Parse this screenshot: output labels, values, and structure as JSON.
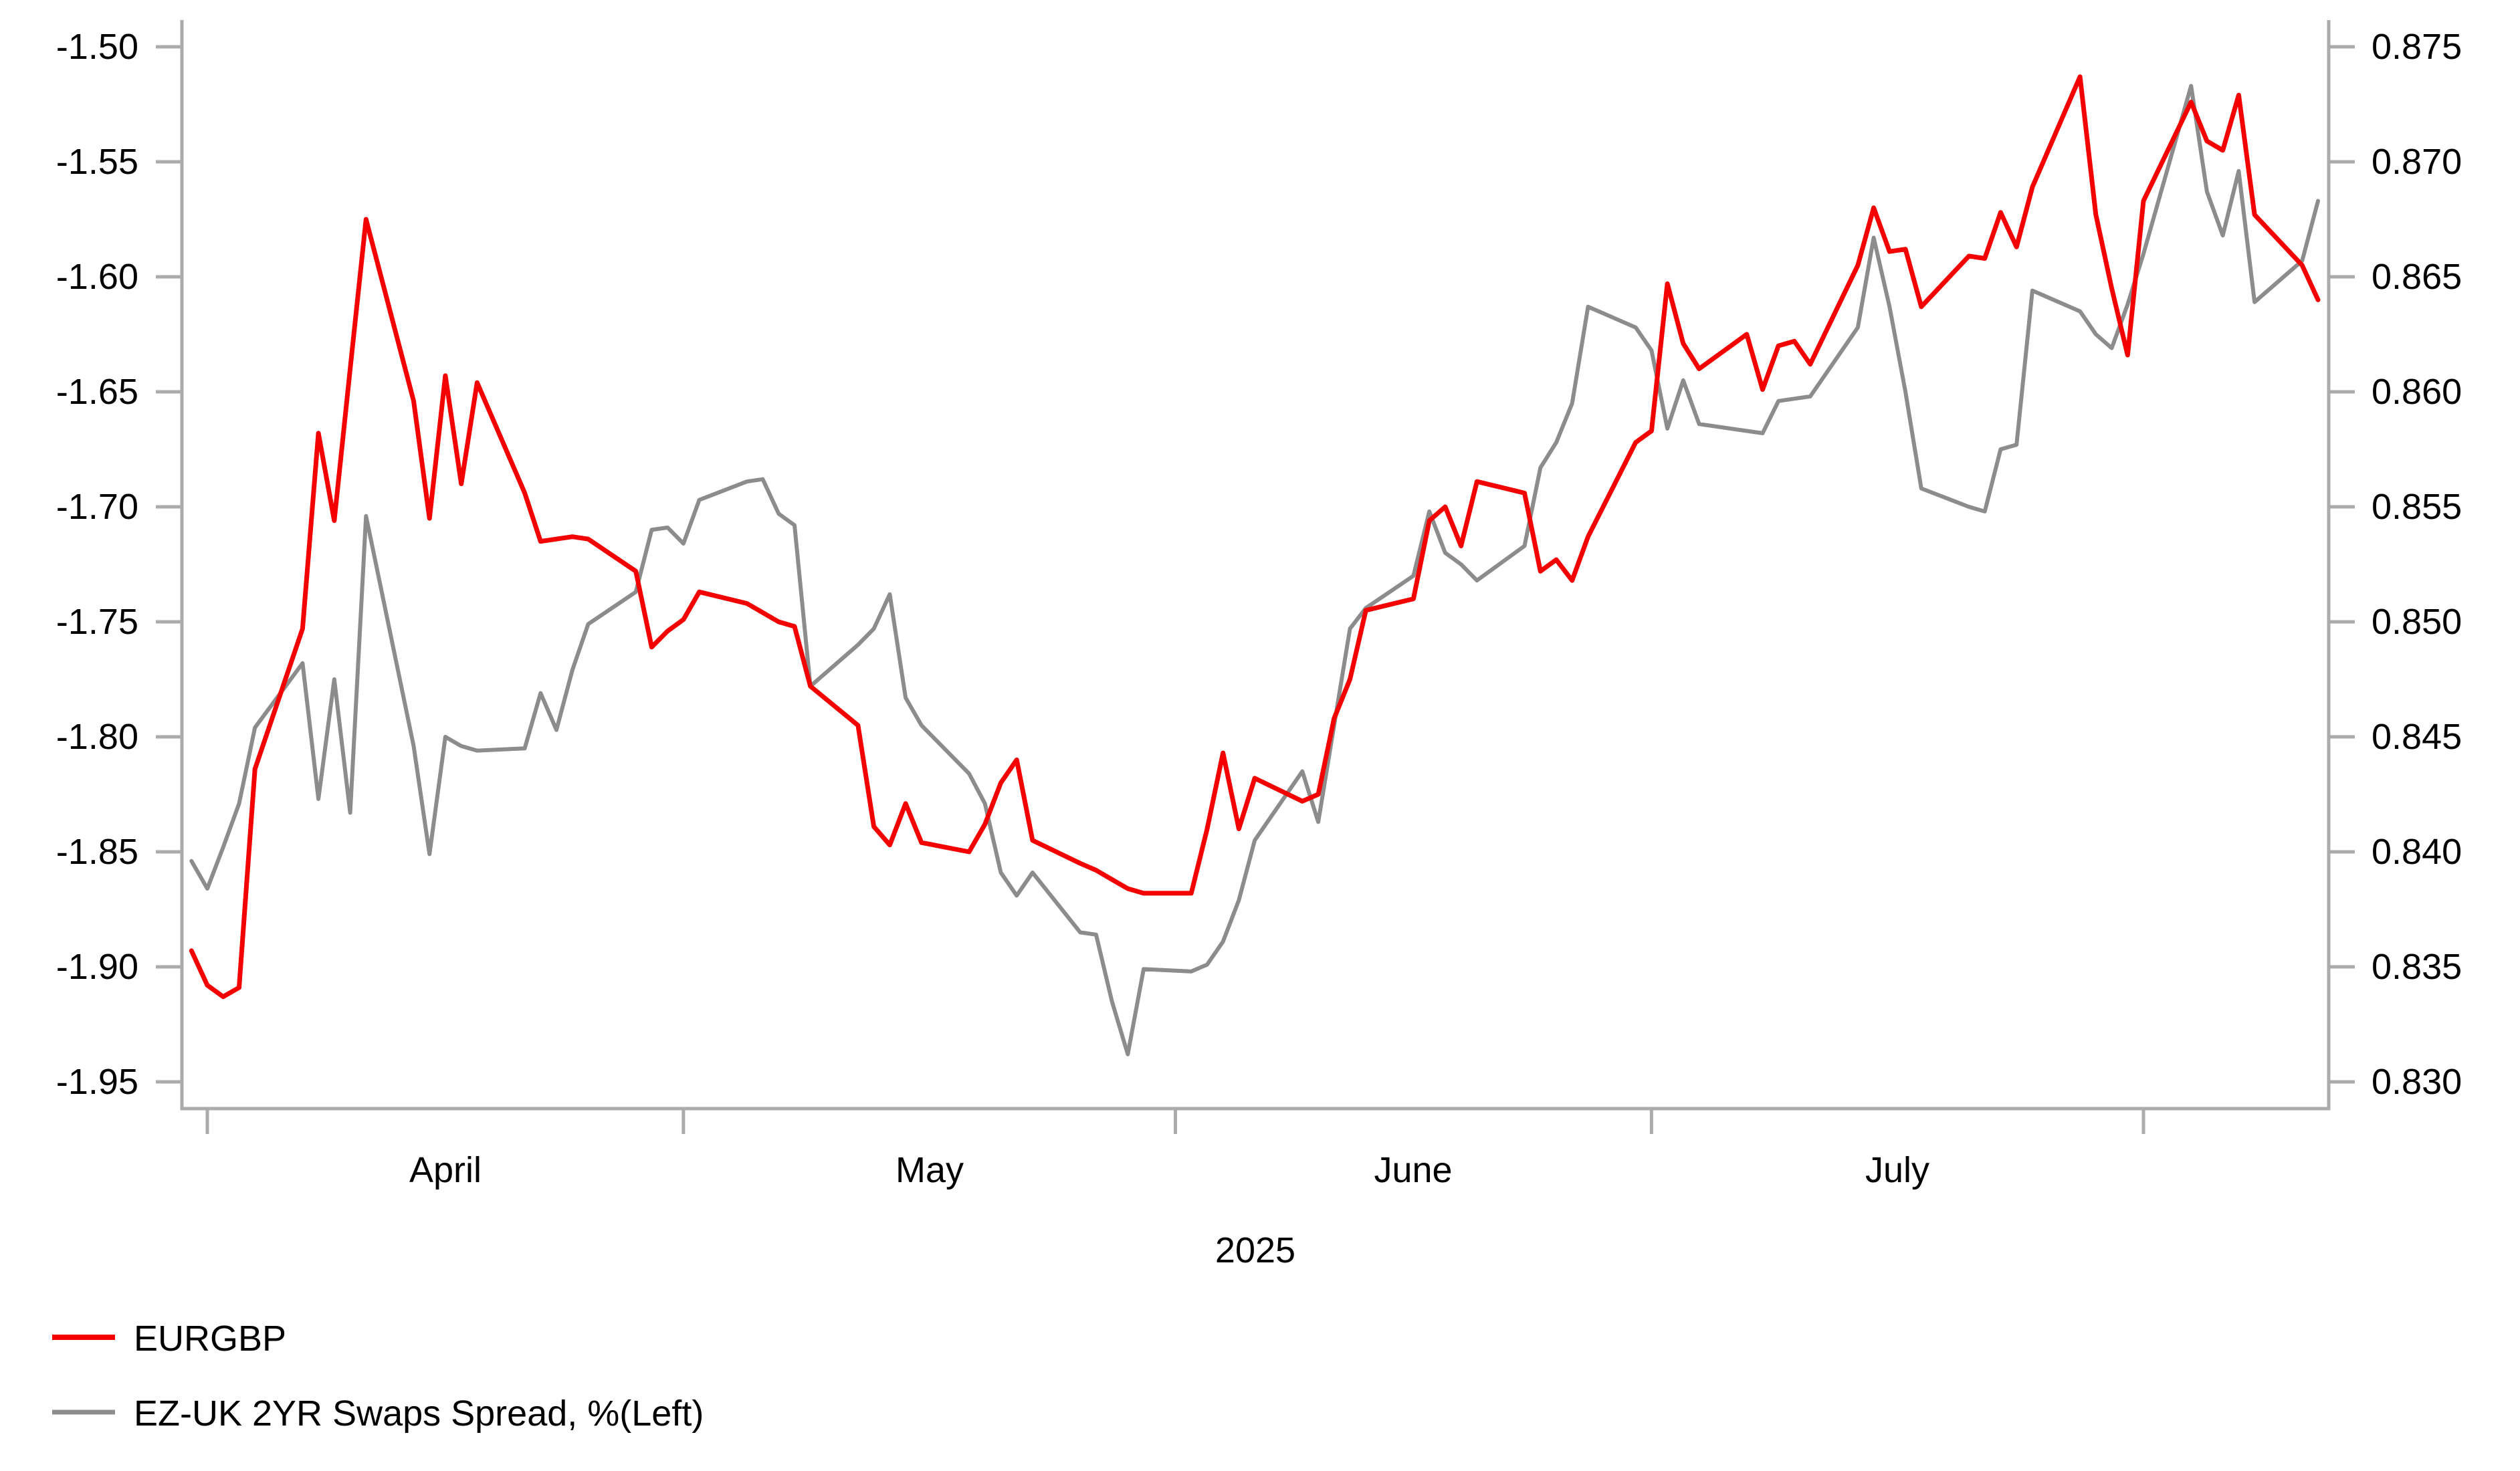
{
  "chart_data": {
    "type": "line",
    "title": "",
    "grid": false,
    "legend_position": "bottom-left",
    "x_axis": {
      "year_label": "2025",
      "month_labels": [
        "April",
        "May",
        "June",
        "July"
      ],
      "month_tick_dates": [
        "2025-04-01",
        "2025-05-01",
        "2025-06-01",
        "2025-07-01",
        "2025-08-01"
      ],
      "start_date": "2025-03-31",
      "end_date": "2025-08-12"
    },
    "y_left": {
      "side": "left",
      "tick_labels": [
        "-1.50",
        "-1.55",
        "-1.60",
        "-1.65",
        "-1.70",
        "-1.75",
        "-1.80",
        "-1.85",
        "-1.90",
        "-1.95"
      ],
      "max": -1.5,
      "min": -1.95,
      "step": 0.05
    },
    "y_right": {
      "side": "right",
      "tick_labels": [
        "0.875",
        "0.870",
        "0.865",
        "0.860",
        "0.855",
        "0.850",
        "0.845",
        "0.840",
        "0.835",
        "0.830"
      ],
      "max": 0.875,
      "min": 0.83,
      "step": 0.005
    },
    "colors": {
      "eurgbp": "#f40000",
      "spread": "#8c8c8c",
      "axis": "#ababab",
      "text": "#000000"
    },
    "dates": [
      "2025-03-31",
      "2025-04-01",
      "2025-04-02",
      "2025-04-03",
      "2025-04-04",
      "2025-04-07",
      "2025-04-08",
      "2025-04-09",
      "2025-04-10",
      "2025-04-11",
      "2025-04-14",
      "2025-04-15",
      "2025-04-16",
      "2025-04-17",
      "2025-04-18",
      "2025-04-21",
      "2025-04-22",
      "2025-04-23",
      "2025-04-24",
      "2025-04-25",
      "2025-04-28",
      "2025-04-29",
      "2025-04-30",
      "2025-05-01",
      "2025-05-02",
      "2025-05-05",
      "2025-05-06",
      "2025-05-07",
      "2025-05-08",
      "2025-05-09",
      "2025-05-12",
      "2025-05-13",
      "2025-05-14",
      "2025-05-15",
      "2025-05-16",
      "2025-05-19",
      "2025-05-20",
      "2025-05-21",
      "2025-05-22",
      "2025-05-23",
      "2025-05-26",
      "2025-05-27",
      "2025-05-28",
      "2025-05-29",
      "2025-05-30",
      "2025-06-02",
      "2025-06-03",
      "2025-06-04",
      "2025-06-05",
      "2025-06-06",
      "2025-06-09",
      "2025-06-10",
      "2025-06-11",
      "2025-06-12",
      "2025-06-13",
      "2025-06-16",
      "2025-06-17",
      "2025-06-18",
      "2025-06-19",
      "2025-06-20",
      "2025-06-23",
      "2025-06-24",
      "2025-06-25",
      "2025-06-26",
      "2025-06-27",
      "2025-06-30",
      "2025-07-01",
      "2025-07-02",
      "2025-07-03",
      "2025-07-04",
      "2025-07-07",
      "2025-07-08",
      "2025-07-09",
      "2025-07-10",
      "2025-07-11",
      "2025-07-14",
      "2025-07-15",
      "2025-07-16",
      "2025-07-17",
      "2025-07-18",
      "2025-07-21",
      "2025-07-22",
      "2025-07-23",
      "2025-07-24",
      "2025-07-25",
      "2025-07-28",
      "2025-07-29",
      "2025-07-30",
      "2025-07-31",
      "2025-08-01",
      "2025-08-04",
      "2025-08-05",
      "2025-08-06",
      "2025-08-07",
      "2025-08-08",
      "2025-08-11",
      "2025-08-12"
    ],
    "series": [
      {
        "name": "EURGBP",
        "axis": "right",
        "color": "#f40000",
        "stroke_width": 7,
        "polyline_id": "line-eurgbp",
        "values": [
          0.8357,
          0.8342,
          0.8337,
          0.8341,
          0.8436,
          0.8497,
          0.8582,
          0.8544,
          0.861,
          0.8675,
          0.8596,
          0.8545,
          0.8607,
          0.856,
          0.8604,
          0.8556,
          0.8535,
          0.8536,
          0.8537,
          0.8536,
          0.8522,
          0.8489,
          0.8496,
          0.8501,
          0.8513,
          0.8508,
          0.8504,
          0.85,
          0.8498,
          0.8472,
          0.8455,
          0.8411,
          0.8403,
          0.8421,
          0.8404,
          0.84,
          0.8412,
          0.843,
          0.844,
          0.8405,
          0.8395,
          0.8392,
          0.8388,
          0.8384,
          0.8382,
          0.8382,
          0.841,
          0.8443,
          0.841,
          0.8432,
          0.8422,
          0.8425,
          0.8458,
          0.8475,
          0.8505,
          0.851,
          0.8544,
          0.855,
          0.8533,
          0.8561,
          0.8556,
          0.8522,
          0.8527,
          0.8518,
          0.8537,
          0.8578,
          0.8583,
          0.8647,
          0.8621,
          0.861,
          0.8625,
          0.8601,
          0.862,
          0.8622,
          0.8612,
          0.8655,
          0.868,
          0.8661,
          0.8662,
          0.8637,
          0.8659,
          0.8658,
          0.8678,
          0.8663,
          0.8689,
          0.8737,
          0.8677,
          0.8645,
          0.8616,
          0.8683,
          0.8726,
          0.8709,
          0.8705,
          0.8729,
          0.8677,
          0.8655,
          0.864
        ]
      },
      {
        "name": "EZ-UK 2YR Swaps Spread, %(Left)",
        "axis": "left",
        "color": "#8c8c8c",
        "stroke_width": 6,
        "polyline_id": "line-spread",
        "values": [
          -1.854,
          -1.866,
          -1.848,
          -1.829,
          -1.796,
          -1.768,
          -1.827,
          -1.775,
          -1.833,
          -1.704,
          -1.804,
          -1.851,
          -1.8,
          -1.804,
          -1.806,
          -1.805,
          -1.781,
          -1.797,
          -1.771,
          -1.751,
          -1.737,
          -1.71,
          -1.709,
          -1.716,
          -1.697,
          -1.689,
          -1.688,
          -1.703,
          -1.708,
          -1.778,
          -1.76,
          -1.753,
          -1.738,
          -1.783,
          -1.795,
          -1.816,
          -1.829,
          -1.859,
          -1.869,
          -1.859,
          -1.885,
          -1.886,
          -1.915,
          -1.938,
          -1.901,
          -1.902,
          -1.899,
          -1.889,
          -1.871,
          -1.845,
          -1.815,
          -1.837,
          -1.795,
          -1.753,
          -1.744,
          -1.73,
          -1.702,
          -1.72,
          -1.725,
          -1.732,
          -1.717,
          -1.683,
          -1.672,
          -1.655,
          -1.613,
          -1.622,
          -1.632,
          -1.666,
          -1.645,
          -1.664,
          -1.667,
          -1.668,
          -1.654,
          -1.653,
          -1.652,
          -1.622,
          -1.583,
          -1.613,
          -1.65,
          -1.692,
          -1.7,
          -1.702,
          -1.675,
          -1.673,
          -1.606,
          -1.615,
          -1.625,
          -1.631,
          -1.612,
          -1.59,
          -1.517,
          -1.563,
          -1.582,
          -1.554,
          -1.611,
          -1.593,
          -1.567
        ]
      }
    ],
    "legend": [
      {
        "label": "EURGBP",
        "color": "#f40000"
      },
      {
        "label": "EZ-UK 2YR Swaps Spread, %(Left)",
        "color": "#8c8c8c"
      }
    ]
  }
}
